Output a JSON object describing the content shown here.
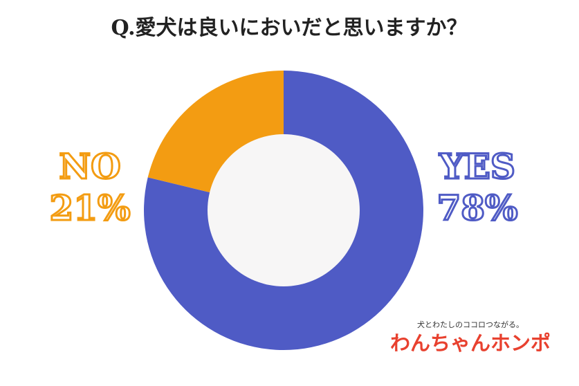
{
  "chart_data": {
    "type": "pie",
    "title": "Q.愛犬は良いにおいだと思いますか？",
    "categories": [
      "YES",
      "NO"
    ],
    "values": [
      78,
      21
    ],
    "value_labels": [
      "78%",
      "21%"
    ],
    "colors": [
      "#4f5bc5",
      "#f39c12"
    ],
    "donut": true
  },
  "logo": {
    "tagline": "犬とわたしのココロつながる。",
    "name": "わんちゃんホンポ"
  }
}
